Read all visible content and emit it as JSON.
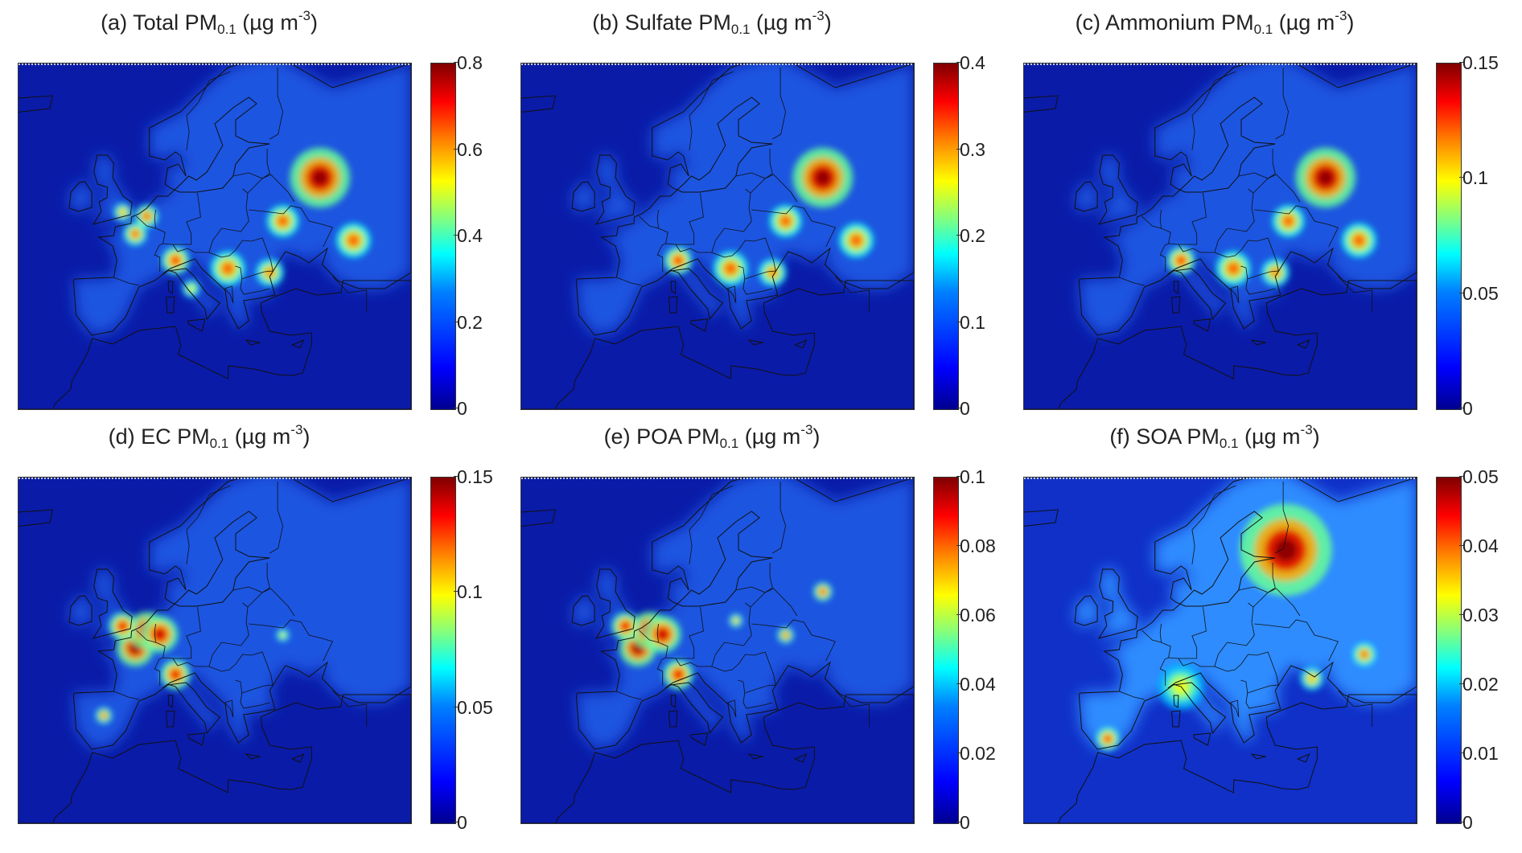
{
  "panels": [
    {
      "id": "a",
      "title_prefix": "(a) Total PM",
      "subscript": "0.1",
      "unit_open": "(µg m",
      "exponent": "-3",
      "unit_close": ")",
      "colorbar": {
        "min": 0,
        "max": 0.8,
        "ticks": [
          "0.8",
          "0.6",
          "0.4",
          "0.2",
          "0"
        ]
      },
      "hotspots": [
        {
          "lon": 37.6,
          "lat": 55.8,
          "level": 1.0,
          "r": 2.6
        },
        {
          "lon": 30.5,
          "lat": 50.4,
          "level": 0.8,
          "r": 1.4
        },
        {
          "lon": 44,
          "lat": 48,
          "level": 0.8,
          "r": 1.5
        },
        {
          "lon": 10,
          "lat": 45.5,
          "level": 0.85,
          "r": 1.2
        },
        {
          "lon": 20,
          "lat": 44.5,
          "level": 0.8,
          "r": 1.5
        },
        {
          "lon": 28,
          "lat": 44,
          "level": 0.75,
          "r": 1.2
        },
        {
          "lon": 2.3,
          "lat": 48.8,
          "level": 0.8,
          "r": 1.0
        },
        {
          "lon": 4.5,
          "lat": 51,
          "level": 0.8,
          "r": 1.0
        },
        {
          "lon": -0.1,
          "lat": 51.5,
          "level": 0.7,
          "r": 0.8
        },
        {
          "lon": 13,
          "lat": 42,
          "level": 0.6,
          "r": 0.8
        }
      ]
    },
    {
      "id": "b",
      "title_prefix": "(b) Sulfate PM",
      "subscript": "0.1",
      "unit_open": "(µg m",
      "exponent": "-3",
      "unit_close": ")",
      "colorbar": {
        "min": 0,
        "max": 0.4,
        "ticks": [
          "0.4",
          "0.3",
          "0.2",
          "0.1",
          "0"
        ]
      },
      "hotspots": [
        {
          "lon": 37.6,
          "lat": 55.8,
          "level": 1.0,
          "r": 2.6
        },
        {
          "lon": 30.5,
          "lat": 50.4,
          "level": 0.8,
          "r": 1.4
        },
        {
          "lon": 44,
          "lat": 48,
          "level": 0.8,
          "r": 1.5
        },
        {
          "lon": 10,
          "lat": 45.5,
          "level": 0.85,
          "r": 1.2
        },
        {
          "lon": 20,
          "lat": 44.5,
          "level": 0.8,
          "r": 1.5
        },
        {
          "lon": 28,
          "lat": 44,
          "level": 0.75,
          "r": 1.2
        }
      ]
    },
    {
      "id": "c",
      "title_prefix": "(c) Ammonium PM",
      "subscript": "0.1",
      "unit_open": "(µg m",
      "exponent": "-3",
      "unit_close": ")",
      "colorbar": {
        "min": 0,
        "max": 0.15,
        "ticks": [
          "0.15",
          "0.1",
          "0.05",
          "0"
        ]
      },
      "hotspots": [
        {
          "lon": 37.6,
          "lat": 55.8,
          "level": 1.0,
          "r": 2.6
        },
        {
          "lon": 30.5,
          "lat": 50.4,
          "level": 0.8,
          "r": 1.4
        },
        {
          "lon": 44,
          "lat": 48,
          "level": 0.8,
          "r": 1.5
        },
        {
          "lon": 10,
          "lat": 45.5,
          "level": 0.85,
          "r": 1.2
        },
        {
          "lon": 20,
          "lat": 44.5,
          "level": 0.8,
          "r": 1.5
        },
        {
          "lon": 28,
          "lat": 44,
          "level": 0.75,
          "r": 1.2
        }
      ]
    },
    {
      "id": "d",
      "title_prefix": "(d) EC PM",
      "subscript": "0.1",
      "unit_open": "(µg m",
      "exponent": "-3",
      "unit_close": ")",
      "colorbar": {
        "min": 0,
        "max": 0.15,
        "ticks": [
          "0.15",
          "0.1",
          "0.05",
          "0"
        ]
      },
      "hotspots": [
        {
          "lon": 2.3,
          "lat": 48.8,
          "level": 1.0,
          "r": 1.6
        },
        {
          "lon": 4.5,
          "lat": 51,
          "level": 1.0,
          "r": 1.6
        },
        {
          "lon": 7,
          "lat": 50.5,
          "level": 0.95,
          "r": 1.6
        },
        {
          "lon": -0.1,
          "lat": 51.5,
          "level": 0.9,
          "r": 1.2
        },
        {
          "lon": 10,
          "lat": 45.5,
          "level": 0.9,
          "r": 1.3
        },
        {
          "lon": -3.7,
          "lat": 40.4,
          "level": 0.8,
          "r": 0.7
        },
        {
          "lon": 30.5,
          "lat": 50.4,
          "level": 0.6,
          "r": 0.6
        }
      ]
    },
    {
      "id": "e",
      "title_prefix": "(e) POA PM",
      "subscript": "0.1",
      "unit_open": "(µg m",
      "exponent": "-3",
      "unit_close": ")",
      "colorbar": {
        "min": 0,
        "max": 0.1,
        "ticks": [
          "0.1",
          "0.08",
          "0.06",
          "0.04",
          "0.02",
          "0"
        ]
      },
      "hotspots": [
        {
          "lon": 2.3,
          "lat": 48.8,
          "level": 1.0,
          "r": 1.6
        },
        {
          "lon": 4.5,
          "lat": 51,
          "level": 1.0,
          "r": 1.6
        },
        {
          "lon": 7,
          "lat": 50.5,
          "level": 0.95,
          "r": 1.6
        },
        {
          "lon": -0.1,
          "lat": 51.5,
          "level": 0.9,
          "r": 1.2
        },
        {
          "lon": 10,
          "lat": 45.5,
          "level": 0.9,
          "r": 1.3
        },
        {
          "lon": 37.6,
          "lat": 55.8,
          "level": 0.85,
          "r": 0.8
        },
        {
          "lon": 30.5,
          "lat": 50.4,
          "level": 0.8,
          "r": 0.7
        },
        {
          "lon": 21,
          "lat": 52.2,
          "level": 0.7,
          "r": 0.6
        }
      ]
    },
    {
      "id": "f",
      "title_prefix": "(f) SOA PM",
      "subscript": "0.1",
      "unit_open": "(µg m",
      "exponent": "-3",
      "unit_close": ")",
      "colorbar": {
        "min": 0,
        "max": 0.05,
        "ticks": [
          "0.05",
          "0.04",
          "0.03",
          "0.02",
          "0.01",
          "0"
        ]
      },
      "hotspots": [
        {
          "lon": 30,
          "lat": 61,
          "level": 1.0,
          "r": 4.0
        },
        {
          "lon": 45,
          "lat": 48,
          "level": 0.8,
          "r": 1.0
        },
        {
          "lon": -4,
          "lat": 37.5,
          "level": 0.85,
          "r": 1.0
        },
        {
          "lon": 10,
          "lat": 44,
          "level": 0.6,
          "r": 2.0
        },
        {
          "lon": 35,
          "lat": 45,
          "level": 0.7,
          "r": 1.0
        }
      ]
    }
  ],
  "colors": {
    "background": "#0a1ba8",
    "low": "#00008f",
    "high": "#800000"
  }
}
